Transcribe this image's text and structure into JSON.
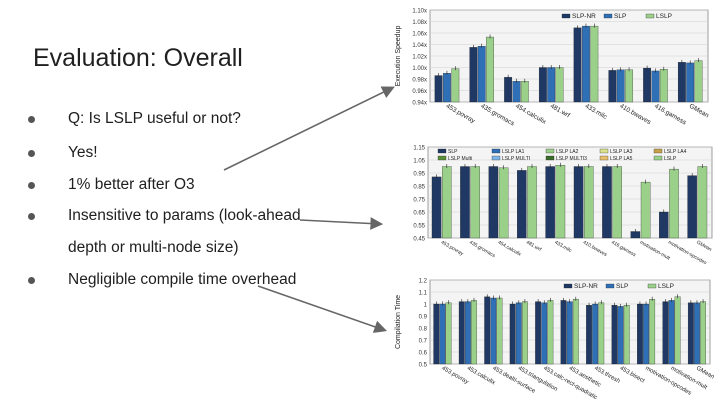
{
  "slide": {
    "title": "Evaluation: Overall",
    "bullets": [
      "Q: Is LSLP useful or not?",
      "Yes!",
      "1% better after O3",
      "Insensitive to params (look-ahead",
      "depth or multi-node size)",
      "Negligible compile time overhead"
    ]
  },
  "colors": {
    "slp_nr": "#1f3864",
    "slp": "#2f6fb5",
    "lslp": "#9bd08a",
    "accent": "#666666"
  },
  "chart_data": [
    {
      "type": "bar",
      "ylabel": "Execution Speedup",
      "ylim": [
        0.94,
        1.1
      ],
      "yticks": [
        "0.94x",
        "0.96x",
        "0.98x",
        "1.00x",
        "1.02x",
        "1.04x",
        "1.06x",
        "1.08x",
        "1.10x"
      ],
      "legend_position": "top-right",
      "categories": [
        "453.povray",
        "435.gromacs",
        "454.calculix",
        "481.wrf",
        "433.milc",
        "410.bwaves",
        "416.gamess",
        "GMean"
      ],
      "series": [
        {
          "name": "SLP-NR",
          "values": [
            0.986,
            1.035,
            0.983,
            1.0,
            1.069,
            0.995,
            0.999,
            1.009
          ]
        },
        {
          "name": "SLP",
          "values": [
            0.99,
            1.037,
            0.976,
            1.0,
            1.072,
            0.996,
            0.994,
            1.008
          ]
        },
        {
          "name": "LSLP",
          "values": [
            0.998,
            1.053,
            0.976,
            1.0,
            1.072,
            0.996,
            0.997,
            1.012
          ]
        }
      ]
    },
    {
      "type": "bar",
      "ylim": [
        0.45,
        1.15
      ],
      "yticks": [
        "0.45",
        "0.55",
        "0.65",
        "0.75",
        "0.85",
        "0.95",
        "1.05",
        "1.15"
      ],
      "legend_position": "top",
      "legend": [
        "SLP",
        "LSLP LA1",
        "LSLP LA2",
        "LSLP LA3",
        "LSLP LA4",
        "LSLP Multi",
        "LSLP MULTI",
        "LSLP MULTI3",
        "LSLP LA5",
        "LSLP"
      ],
      "categories": [
        "453.povray",
        "435.gromacs",
        "454.calculix",
        "481.wrf",
        "433.milc",
        "410.bwaves",
        "416.gamess",
        "motivation-mult",
        "motivation-opcodes",
        "GMean"
      ],
      "series": [
        {
          "name": "SLP",
          "values": [
            0.92,
            1.0,
            1.0,
            0.97,
            1.0,
            1.0,
            1.0,
            0.5,
            0.65,
            0.93
          ]
        },
        {
          "name": "LSLP",
          "values": [
            1.0,
            1.0,
            0.99,
            1.0,
            1.01,
            1.0,
            1.0,
            0.88,
            0.98,
            1.0
          ]
        }
      ]
    },
    {
      "type": "bar",
      "ylabel": "Compilation Time",
      "ylim": [
        0.5,
        1.2
      ],
      "yticks": [
        "0.5",
        "0.6",
        "0.7",
        "0.8",
        "0.9",
        "1",
        "1.1",
        "1.2"
      ],
      "legend_position": "top-right",
      "categories": [
        "453.povray",
        "453.calculix",
        "453.dealII-surface",
        "453.triangulation",
        "453.calc-rect-quadratic",
        "453.aesthetic",
        "453.thresh",
        "453.bisect",
        "motivation-opcodes",
        "motivation-mult",
        "GMean"
      ],
      "series": [
        {
          "name": "SLP-NR",
          "values": [
            1.0,
            1.02,
            1.06,
            1.0,
            1.02,
            1.03,
            0.99,
            0.99,
            1.0,
            1.02,
            1.01
          ]
        },
        {
          "name": "SLP",
          "values": [
            1.0,
            1.02,
            1.05,
            1.01,
            1.01,
            1.02,
            1.0,
            0.98,
            1.0,
            1.03,
            1.01
          ]
        },
        {
          "name": "LSLP",
          "values": [
            1.01,
            1.03,
            1.05,
            1.02,
            1.03,
            1.04,
            1.01,
            0.99,
            1.04,
            1.06,
            1.02
          ]
        }
      ]
    }
  ]
}
